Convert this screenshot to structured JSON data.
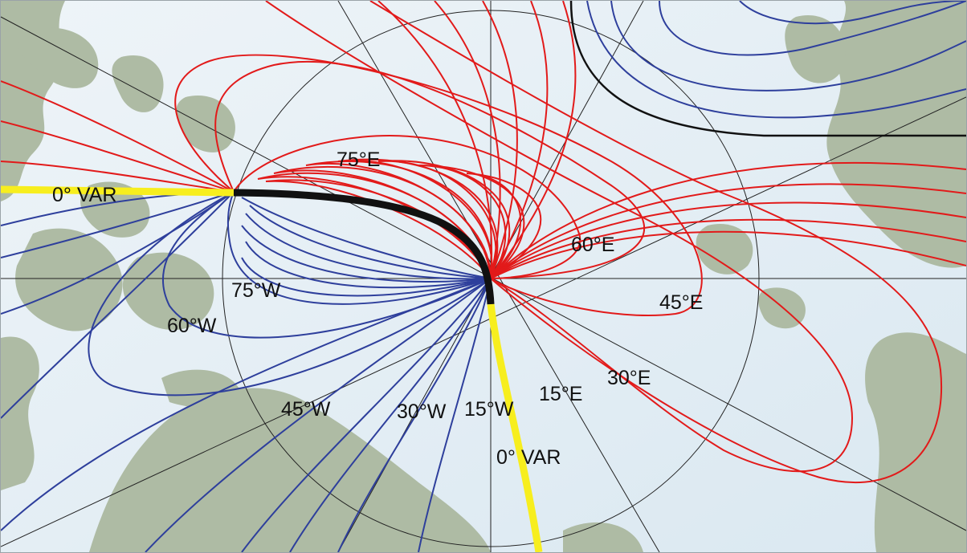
{
  "map": {
    "colors": {
      "sea": "#e3eef5",
      "land": "#aebba4",
      "graticule": "#222222",
      "east_isogonic": "#e21a1a",
      "west_isogonic": "#2e3f9c",
      "zero_variation": "#f7ee1e",
      "agonic_black": "#111111"
    },
    "labels": {
      "zero_var_west": "0° VAR",
      "zero_var_south": "0° VAR",
      "e75": "75°E",
      "e60": "60°E",
      "e45": "45°E",
      "e30": "30°E",
      "e15": "15°E",
      "w75": "75°W",
      "w60": "60°W",
      "w45": "45°W",
      "w30": "30°W",
      "w15": "15°W"
    }
  }
}
